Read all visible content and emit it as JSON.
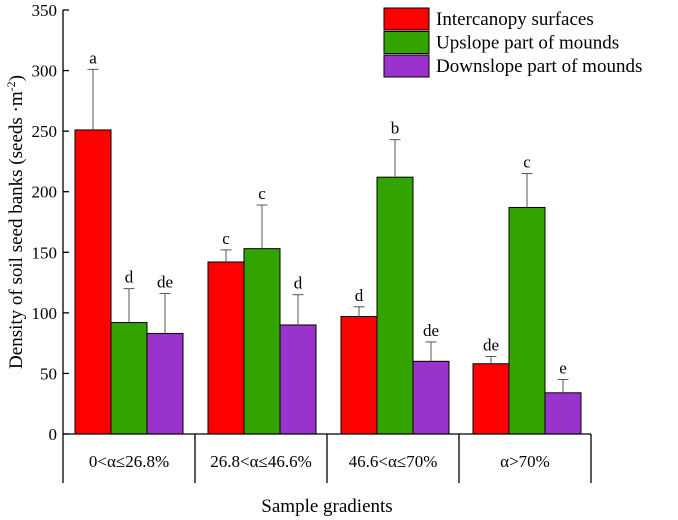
{
  "chart_data": {
    "type": "bar",
    "title": "",
    "xlabel": "Sample gradients",
    "ylabel": "Density of soil seed banks (seeds ·m",
    "ylabel_sup": "-2",
    "ylabel_close": ")",
    "ylim": [
      0,
      350
    ],
    "yticks": [
      0,
      50,
      100,
      150,
      200,
      250,
      300,
      350
    ],
    "categories": [
      "0<α≤26.8%",
      "26.8<α≤46.6%",
      "46.6<α≤70%",
      "α>70%"
    ],
    "series": [
      {
        "name": "Intercanopy surfaces",
        "color": "#ff0000",
        "values": [
          251,
          142,
          97,
          58
        ],
        "errors": [
          50,
          10,
          8,
          6
        ],
        "labels": [
          "a",
          "c",
          "d",
          "de"
        ]
      },
      {
        "name": "Upslope part of mounds",
        "color": "#33a300",
        "values": [
          92,
          153,
          212,
          187
        ],
        "errors": [
          28,
          36,
          31,
          28
        ],
        "labels": [
          "d",
          "c",
          "b",
          "c"
        ]
      },
      {
        "name": "Downslope part of mounds",
        "color": "#9933cc",
        "values": [
          83,
          90,
          60,
          34
        ],
        "errors": [
          33,
          25,
          16,
          11
        ],
        "labels": [
          "de",
          "d",
          "de",
          "e"
        ]
      }
    ],
    "legend_position": "top-right",
    "grid": false
  }
}
